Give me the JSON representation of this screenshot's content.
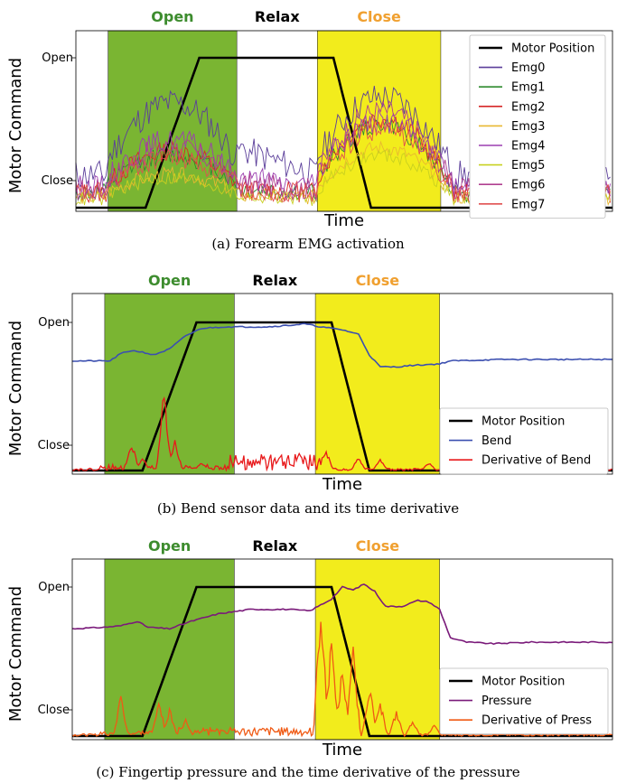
{
  "figure": {
    "phase_labels": {
      "open": "Open",
      "relax": "Relax",
      "close": "Close"
    },
    "colors": {
      "open_band": "#7ab532",
      "close_band": "#f2ec1c",
      "open_text": "#3d8c2e",
      "relax_text": "#000000",
      "close_text": "#f0a030"
    }
  },
  "chart_data": [
    {
      "type": "line",
      "caption": "(a) Forearm EMG activation",
      "xlabel": "Time",
      "ylabel": "Motor Command",
      "yticks": [
        "Open",
        "Close"
      ],
      "xlim": [
        0,
        100
      ],
      "ylim": [
        0,
        1
      ],
      "regions": [
        {
          "label": "Open",
          "x0": 6,
          "x1": 30
        },
        {
          "label": "Close",
          "x0": 45,
          "x1": 68
        }
      ],
      "legend": {
        "position": "upper right"
      },
      "series": [
        {
          "name": "Motor Position",
          "color": "#000000",
          "width": 2.6,
          "kind": "motor"
        },
        {
          "name": "Emg0",
          "color": "#5b3e9a",
          "kind": "emg",
          "base": 0.22,
          "peaks": [
            0.7,
            0.4,
            0.74
          ],
          "noise": 0.1,
          "seed": 11
        },
        {
          "name": "Emg1",
          "color": "#2e8b2e",
          "kind": "emg",
          "base": 0.1,
          "peaks": [
            0.35,
            0.12,
            0.55
          ],
          "noise": 0.06,
          "seed": 12
        },
        {
          "name": "Emg2",
          "color": "#d62728",
          "kind": "emg",
          "base": 0.1,
          "peaks": [
            0.38,
            0.12,
            0.6
          ],
          "noise": 0.07,
          "seed": 13
        },
        {
          "name": "Emg3",
          "color": "#e8b830",
          "kind": "emg",
          "base": 0.07,
          "peaks": [
            0.22,
            0.08,
            0.4
          ],
          "noise": 0.05,
          "seed": 14
        },
        {
          "name": "Emg4",
          "color": "#9b3fb0",
          "kind": "emg",
          "base": 0.14,
          "peaks": [
            0.45,
            0.2,
            0.58
          ],
          "noise": 0.08,
          "seed": 15
        },
        {
          "name": "Emg5",
          "color": "#c8d020",
          "kind": "emg",
          "base": 0.06,
          "peaks": [
            0.2,
            0.08,
            0.35
          ],
          "noise": 0.05,
          "seed": 16
        },
        {
          "name": "Emg6",
          "color": "#b04090",
          "kind": "emg",
          "base": 0.12,
          "peaks": [
            0.4,
            0.16,
            0.65
          ],
          "noise": 0.08,
          "seed": 17
        },
        {
          "name": "Emg7",
          "color": "#e05050",
          "kind": "emg",
          "base": 0.1,
          "peaks": [
            0.33,
            0.12,
            0.52
          ],
          "noise": 0.07,
          "seed": 18
        }
      ]
    },
    {
      "type": "line",
      "caption": "(b) Bend sensor data and its time derivative",
      "xlabel": "Time",
      "ylabel": "Motor Command",
      "yticks": [
        "Open",
        "Close"
      ],
      "xlim": [
        0,
        100
      ],
      "ylim": [
        0,
        1
      ],
      "regions": [
        {
          "label": "Open",
          "x0": 6,
          "x1": 30
        },
        {
          "label": "Close",
          "x0": 45,
          "x1": 68
        }
      ],
      "legend": {
        "position": "lower right"
      },
      "series": [
        {
          "name": "Motor Position",
          "color": "#000000",
          "width": 2.6,
          "kind": "motor"
        },
        {
          "name": "Bend",
          "color": "#3b4fb0",
          "kind": "bend",
          "points": [
            [
              0,
              0.74
            ],
            [
              7,
              0.74
            ],
            [
              9,
              0.79
            ],
            [
              11,
              0.81
            ],
            [
              13,
              0.8
            ],
            [
              15,
              0.78
            ],
            [
              18,
              0.82
            ],
            [
              21,
              0.91
            ],
            [
              24,
              0.96
            ],
            [
              28,
              0.97
            ],
            [
              32,
              0.97
            ],
            [
              36,
              0.97
            ],
            [
              40,
              0.98
            ],
            [
              43,
              0.99
            ],
            [
              46,
              0.97
            ],
            [
              50,
              0.95
            ],
            [
              53,
              0.92
            ],
            [
              55,
              0.78
            ],
            [
              57,
              0.7
            ],
            [
              60,
              0.7
            ],
            [
              63,
              0.71
            ],
            [
              68,
              0.72
            ],
            [
              70,
              0.74
            ],
            [
              80,
              0.75
            ],
            [
              100,
              0.75
            ]
          ],
          "seed": 21
        },
        {
          "name": "Derivative of Bend",
          "color": "#e8191b",
          "kind": "deriv",
          "spikes": [
            [
              11,
              0.2
            ],
            [
              17,
              0.59
            ],
            [
              13,
              0.1
            ],
            [
              19,
              0.22
            ],
            [
              24,
              0.06
            ],
            [
              42,
              0.12
            ],
            [
              47,
              0.14
            ],
            [
              53,
              0.1
            ],
            [
              57,
              0.08
            ],
            [
              66,
              0.06
            ]
          ],
          "band": [
            29,
            47,
            0.11
          ],
          "seed": 22
        }
      ]
    },
    {
      "type": "line",
      "caption": "(c) Fingertip pressure and the time derivative of the pressure",
      "xlabel": "Time",
      "ylabel": "Motor Command",
      "yticks": [
        "Open",
        "Close"
      ],
      "xlim": [
        0,
        100
      ],
      "ylim": [
        0,
        1
      ],
      "regions": [
        {
          "label": "Open",
          "x0": 6,
          "x1": 30
        },
        {
          "label": "Close",
          "x0": 45,
          "x1": 68
        }
      ],
      "legend": {
        "position": "lower right"
      },
      "series": [
        {
          "name": "Motor Position",
          "color": "#000000",
          "width": 2.6,
          "kind": "motor"
        },
        {
          "name": "Pressure",
          "color": "#7a1a7a",
          "kind": "bend",
          "points": [
            [
              0,
              0.72
            ],
            [
              6,
              0.73
            ],
            [
              9,
              0.74
            ],
            [
              12,
              0.77
            ],
            [
              14,
              0.73
            ],
            [
              18,
              0.72
            ],
            [
              22,
              0.77
            ],
            [
              27,
              0.82
            ],
            [
              33,
              0.85
            ],
            [
              40,
              0.85
            ],
            [
              44,
              0.84
            ],
            [
              46,
              0.88
            ],
            [
              48,
              0.92
            ],
            [
              50,
              1.0
            ],
            [
              52,
              0.98
            ],
            [
              54,
              1.02
            ],
            [
              56,
              0.97
            ],
            [
              58,
              0.87
            ],
            [
              61,
              0.87
            ],
            [
              64,
              0.91
            ],
            [
              66,
              0.9
            ],
            [
              68,
              0.85
            ],
            [
              70,
              0.66
            ],
            [
              73,
              0.63
            ],
            [
              78,
              0.62
            ],
            [
              85,
              0.63
            ],
            [
              100,
              0.63
            ]
          ],
          "seed": 31
        },
        {
          "name": "Derivative of Press",
          "color": "#f05a14",
          "kind": "deriv",
          "spikes": [
            [
              9,
              0.29
            ],
            [
              16,
              0.28
            ],
            [
              18,
              0.2
            ],
            [
              21,
              0.12
            ],
            [
              46,
              1.0
            ],
            [
              48,
              0.7
            ],
            [
              50,
              0.5
            ],
            [
              52,
              0.62
            ],
            [
              55,
              0.38
            ],
            [
              57,
              0.25
            ],
            [
              60,
              0.18
            ],
            [
              63,
              0.12
            ],
            [
              67,
              0.08
            ]
          ],
          "band": [
            18,
            44,
            0.06
          ],
          "seed": 32
        }
      ]
    }
  ]
}
